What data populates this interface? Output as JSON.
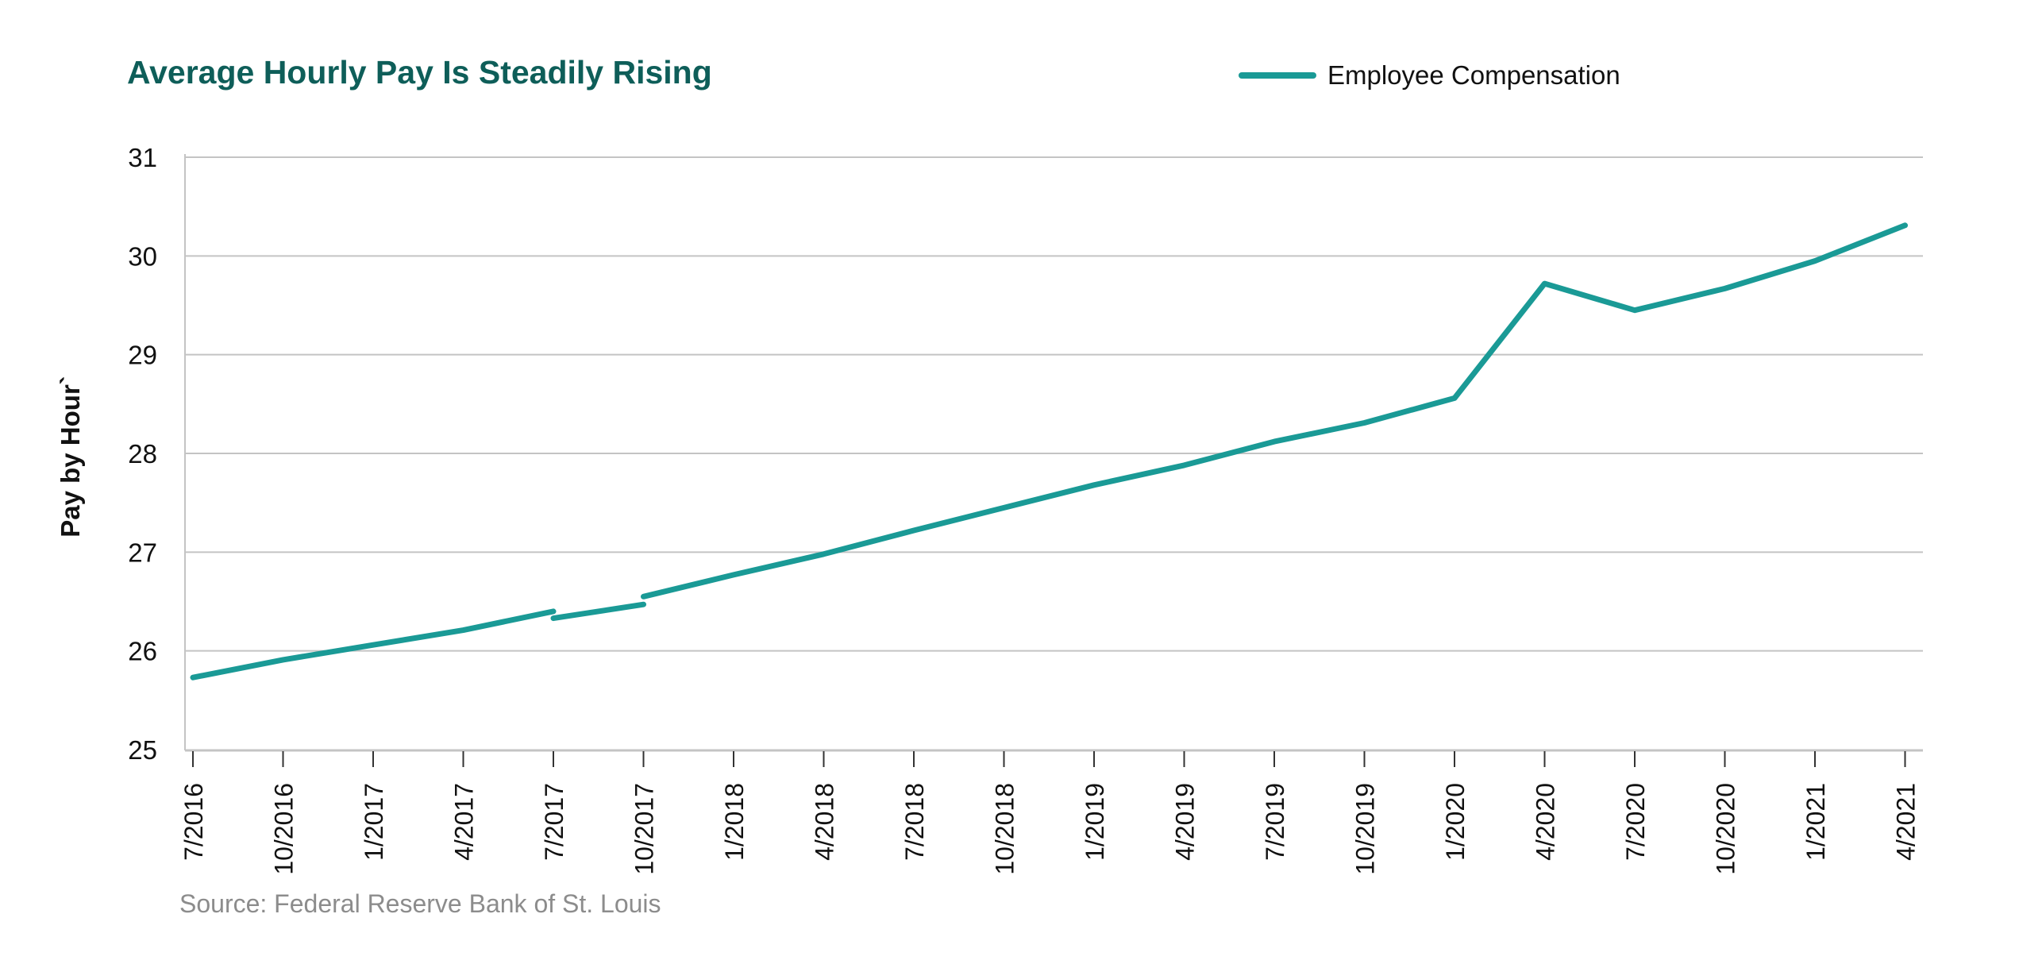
{
  "legend": {
    "label": "Employee Compensation",
    "color": "#1a9a96"
  },
  "source": "Source: Federal Reserve Bank of St. Louis",
  "chart_data": {
    "type": "line",
    "title": "Average Hourly Pay Is Steadily Rising",
    "xlabel": "",
    "ylabel": "Pay by Hour`",
    "ylim": [
      25,
      31
    ],
    "yticks": [
      25,
      26,
      27,
      28,
      29,
      30,
      31
    ],
    "grid": true,
    "legend_position": "top-right",
    "categories": [
      "7/2016",
      "10/2016",
      "1/2017",
      "4/2017",
      "7/2017",
      "10/2017",
      "1/2018",
      "4/2018",
      "7/2018",
      "10/2018",
      "1/2019",
      "4/2019",
      "7/2019",
      "10/2019",
      "1/2020",
      "4/2020",
      "7/2020",
      "10/2020",
      "1/2021",
      "4/2021"
    ],
    "colors": {
      "series": "#1a9a96",
      "title": "#0e5e59",
      "grid": "#c4c4c4",
      "axis": "#c4c4c4",
      "text": "#111111"
    },
    "series": [
      {
        "name": "Employee Compensation",
        "segments": [
          [
            {
              "x": "7/2016",
              "y": 25.73
            },
            {
              "x": "10/2016",
              "y": 25.91
            },
            {
              "x": "1/2017",
              "y": 26.06
            },
            {
              "x": "4/2017",
              "y": 26.21
            },
            {
              "x": "7/2017",
              "y": 26.4
            }
          ],
          [
            {
              "x": "7/2017",
              "y": 26.33
            },
            {
              "x": "10/2017",
              "y": 26.47
            }
          ],
          [
            {
              "x": "10/2017",
              "y": 26.55
            },
            {
              "x": "1/2018",
              "y": 26.77
            },
            {
              "x": "4/2018",
              "y": 26.98
            },
            {
              "x": "7/2018",
              "y": 27.22
            },
            {
              "x": "10/2018",
              "y": 27.45
            },
            {
              "x": "1/2019",
              "y": 27.68
            },
            {
              "x": "4/2019",
              "y": 27.88
            },
            {
              "x": "7/2019",
              "y": 28.12
            },
            {
              "x": "10/2019",
              "y": 28.31
            },
            {
              "x": "1/2020",
              "y": 28.56
            },
            {
              "x": "4/2020",
              "y": 29.72
            },
            {
              "x": "7/2020",
              "y": 29.45
            },
            {
              "x": "10/2020",
              "y": 29.67
            },
            {
              "x": "1/2021",
              "y": 29.95
            },
            {
              "x": "4/2021",
              "y": 30.31
            }
          ]
        ]
      }
    ]
  }
}
